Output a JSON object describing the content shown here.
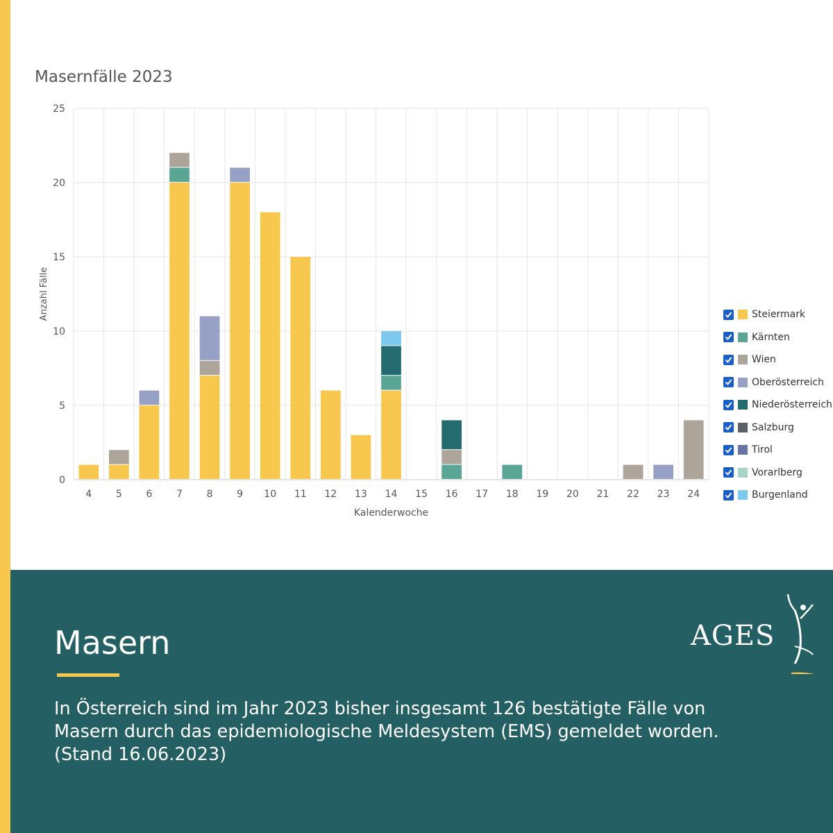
{
  "chart_data": {
    "type": "bar",
    "stacked": true,
    "title": "Masernfälle 2023",
    "xlabel": "Kalenderwoche",
    "ylabel": "Anzahl Fälle",
    "ylim": [
      0,
      25
    ],
    "yticks": [
      0,
      5,
      10,
      15,
      20,
      25
    ],
    "grid": true,
    "legend_position": "right",
    "categories": [
      "4",
      "5",
      "6",
      "7",
      "8",
      "9",
      "10",
      "11",
      "12",
      "13",
      "14",
      "15",
      "16",
      "17",
      "18",
      "19",
      "20",
      "21",
      "22",
      "23",
      "24"
    ],
    "series": [
      {
        "name": "Steiermark",
        "color": "#f8c74e",
        "values": [
          1,
          1,
          5,
          20,
          7,
          20,
          18,
          15,
          6,
          3,
          6,
          0,
          0,
          0,
          0,
          0,
          0,
          0,
          0,
          0,
          0
        ]
      },
      {
        "name": "Kärnten",
        "color": "#5aa596",
        "values": [
          0,
          0,
          0,
          1,
          0,
          0,
          0,
          0,
          0,
          0,
          1,
          0,
          1,
          0,
          1,
          0,
          0,
          0,
          0,
          0,
          0
        ]
      },
      {
        "name": "Wien",
        "color": "#ada59a",
        "values": [
          0,
          1,
          0,
          1,
          1,
          0,
          0,
          0,
          0,
          0,
          0,
          0,
          1,
          0,
          0,
          0,
          0,
          0,
          1,
          0,
          4
        ]
      },
      {
        "name": "Oberösterreich",
        "color": "#97a1c6",
        "values": [
          0,
          0,
          1,
          0,
          3,
          1,
          0,
          0,
          0,
          0,
          0,
          0,
          0,
          0,
          0,
          0,
          0,
          0,
          0,
          1,
          0
        ]
      },
      {
        "name": "Niederösterreich",
        "color": "#246b70",
        "values": [
          0,
          0,
          0,
          0,
          0,
          0,
          0,
          0,
          0,
          0,
          2,
          0,
          2,
          0,
          0,
          0,
          0,
          0,
          0,
          0,
          0
        ]
      },
      {
        "name": "Salzburg",
        "color": "#5b5f66",
        "values": [
          0,
          0,
          0,
          0,
          0,
          0,
          0,
          0,
          0,
          0,
          0,
          0,
          0,
          0,
          0,
          0,
          0,
          0,
          0,
          0,
          0
        ]
      },
      {
        "name": "Tirol",
        "color": "#6674a6",
        "values": [
          0,
          0,
          0,
          0,
          0,
          0,
          0,
          0,
          0,
          0,
          0,
          0,
          0,
          0,
          0,
          0,
          0,
          0,
          0,
          0,
          0
        ]
      },
      {
        "name": "Vorarlberg",
        "color": "#a6d4c9",
        "values": [
          0,
          0,
          0,
          0,
          0,
          0,
          0,
          0,
          0,
          0,
          0,
          0,
          0,
          0,
          0,
          0,
          0,
          0,
          0,
          0,
          0
        ]
      },
      {
        "name": "Burgenland",
        "color": "#7cc8ef",
        "values": [
          0,
          0,
          0,
          0,
          0,
          0,
          0,
          0,
          0,
          0,
          1,
          0,
          0,
          0,
          0,
          0,
          0,
          0,
          0,
          0,
          0
        ]
      }
    ]
  },
  "panel": {
    "title": "Masern",
    "text": "In Österreich sind im Jahr 2023 bisher insgesamt 126 bestätigte Fälle von\nMasern durch das epidemiologische Meldesystem (EMS) gemeldet worden.\n(Stand 16.06.2023)"
  },
  "logo": {
    "text": "AGES"
  },
  "colors": {
    "accent_yellow": "#f8c74e",
    "panel_teal": "#246063",
    "checkbox_blue": "#1a5fc7"
  }
}
